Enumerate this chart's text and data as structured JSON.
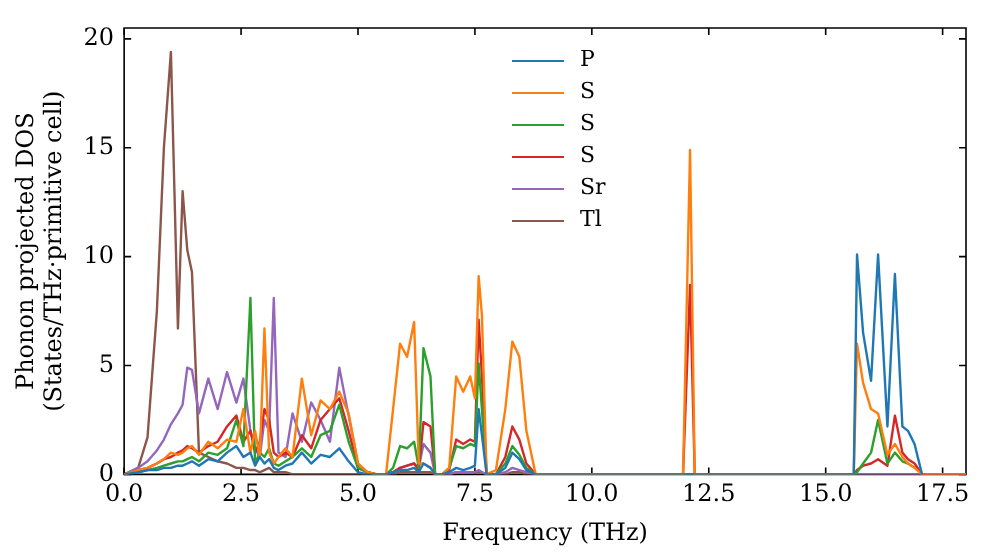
{
  "chart_data": {
    "type": "line",
    "xlabel": "Frequency (THz)",
    "ylabel": "Phonon projected DOS\n(States/THz·primitive cell)",
    "x": [
      0,
      0.3,
      0.5,
      0.7,
      0.85,
      1.0,
      1.15,
      1.25,
      1.35,
      1.45,
      1.6,
      1.8,
      2.0,
      2.2,
      2.4,
      2.55,
      2.7,
      2.8,
      2.9,
      3.0,
      3.1,
      3.2,
      3.3,
      3.45,
      3.6,
      3.8,
      4.0,
      4.2,
      4.4,
      4.6,
      4.8,
      5.0,
      5.2,
      5.4,
      5.6,
      5.75,
      5.9,
      6.05,
      6.2,
      6.3,
      6.4,
      6.55,
      6.65,
      6.8,
      6.95,
      7.1,
      7.25,
      7.4,
      7.5,
      7.58,
      7.65,
      7.75,
      7.95,
      8.15,
      8.3,
      8.45,
      8.6,
      8.8,
      9.0,
      11.95,
      12.1,
      12.2,
      12.35,
      15.6,
      15.67,
      15.8,
      15.97,
      16.12,
      16.32,
      16.48,
      16.64,
      16.76,
      16.9,
      17.06,
      17.3,
      18.0
    ],
    "series": [
      {
        "name": "P",
        "color": "#1f77b4",
        "values": [
          0,
          0.1,
          0.2,
          0.2,
          0.3,
          0.3,
          0.4,
          0.4,
          0.5,
          0.6,
          0.4,
          0.7,
          0.6,
          1.0,
          1.3,
          0.8,
          1.0,
          0.4,
          0.8,
          0.5,
          0.7,
          0.3,
          0.2,
          0.4,
          0.5,
          1.0,
          0.5,
          0.9,
          0.8,
          1.2,
          0.6,
          0.1,
          0,
          null,
          0,
          0.1,
          0.2,
          0.2,
          0.3,
          0.1,
          0.5,
          0.3,
          0,
          0,
          0.1,
          0.3,
          0.2,
          0.3,
          0.4,
          3.0,
          1.8,
          0,
          0,
          0.3,
          1.0,
          0.7,
          0.2,
          0,
          null,
          null,
          null,
          null,
          null,
          0,
          10.1,
          6.5,
          4.3,
          10.1,
          2.2,
          9.2,
          2.2,
          2.0,
          1.4,
          0,
          null,
          null
        ]
      },
      {
        "name": "S",
        "color": "#ff7f0e",
        "values": [
          0,
          0.2,
          0.3,
          0.5,
          0.7,
          1.0,
          0.9,
          1.0,
          1.2,
          1.3,
          0.9,
          1.5,
          1.2,
          1.6,
          1.5,
          3.0,
          1.0,
          2.0,
          0.8,
          6.7,
          1.0,
          0.5,
          0.8,
          1.2,
          0.8,
          4.4,
          1.8,
          3.4,
          3.0,
          3.8,
          2.8,
          0.5,
          0.1,
          0,
          0,
          3.0,
          6.0,
          5.4,
          7.0,
          0.5,
          0.5,
          0.3,
          0,
          0,
          0.3,
          4.5,
          3.8,
          4.5,
          3.5,
          9.1,
          7.3,
          0,
          0.2,
          3.0,
          6.1,
          5.4,
          2.0,
          0,
          null,
          0,
          14.9,
          0,
          null,
          0,
          6.0,
          4.2,
          3.0,
          2.8,
          0.9,
          1.4,
          0.8,
          0.5,
          0.3,
          0,
          null,
          0
        ]
      },
      {
        "name": "S",
        "color": "#2ca02c",
        "values": [
          0,
          0.1,
          0.2,
          0.3,
          0.4,
          0.5,
          0.6,
          0.6,
          0.7,
          0.8,
          0.6,
          1.0,
          0.9,
          1.2,
          2.5,
          1.3,
          8.1,
          0.5,
          1.0,
          0.8,
          1.2,
          0.5,
          0.4,
          0.6,
          0.8,
          1.2,
          0.8,
          1.8,
          2.0,
          3.2,
          1.5,
          0.3,
          0.1,
          0,
          0,
          0.3,
          1.3,
          1.2,
          1.5,
          0.3,
          5.8,
          4.5,
          0,
          0,
          0.3,
          1.3,
          1.2,
          1.4,
          1.3,
          5.1,
          3.0,
          0,
          0,
          0.5,
          1.3,
          0.9,
          0.3,
          0,
          null,
          null,
          null,
          null,
          null,
          0,
          0.1,
          0.5,
          1.0,
          2.5,
          0.5,
          1.0,
          0.6,
          0.5,
          0.3,
          null,
          null,
          null
        ]
      },
      {
        "name": "S",
        "color": "#d62728",
        "values": [
          0,
          0.2,
          0.3,
          0.5,
          0.7,
          0.8,
          1.0,
          1.1,
          1.3,
          1.2,
          1.0,
          1.3,
          1.5,
          2.2,
          2.7,
          1.5,
          2.0,
          1.0,
          1.5,
          3.0,
          2.5,
          1.0,
          0.8,
          1.0,
          0.8,
          1.8,
          1.2,
          2.5,
          3.0,
          3.5,
          2.0,
          0.3,
          0.1,
          0,
          0,
          0.1,
          0.3,
          0.4,
          0.5,
          0.2,
          2.4,
          2.2,
          0,
          0,
          0.2,
          1.6,
          1.4,
          1.6,
          1.5,
          7.1,
          4.5,
          0,
          0,
          0.8,
          2.2,
          1.6,
          0.5,
          0,
          null,
          0,
          8.7,
          0,
          null,
          0,
          0.2,
          0.4,
          0.5,
          0.7,
          0.4,
          2.7,
          1.0,
          0.7,
          0.5,
          0,
          null,
          0
        ]
      },
      {
        "name": "Sr",
        "color": "#9467bd",
        "values": [
          0,
          0.3,
          0.6,
          1.1,
          1.6,
          2.3,
          2.8,
          3.2,
          4.9,
          4.8,
          2.8,
          4.4,
          3.0,
          4.7,
          3.3,
          4.4,
          2.0,
          1.2,
          0.8,
          2.5,
          2.0,
          8.1,
          1.0,
          0.8,
          2.8,
          1.5,
          3.3,
          2.5,
          1.5,
          4.9,
          2.7,
          0.5,
          0.1,
          0,
          0,
          0.1,
          0.3,
          0.4,
          0.5,
          0.3,
          1.4,
          1.0,
          0,
          null,
          0,
          0.1,
          0.1,
          0.1,
          0.1,
          0.2,
          0.1,
          0,
          0,
          0.1,
          0.3,
          0.2,
          0.1,
          0,
          null,
          null,
          null,
          null,
          null,
          null,
          null,
          null,
          null,
          null,
          null,
          null,
          null,
          null,
          null,
          null,
          null,
          0
        ]
      },
      {
        "name": "Tl",
        "color": "#8c564b",
        "values": [
          0,
          0.3,
          1.7,
          7.5,
          15,
          19.4,
          6.7,
          13,
          10.3,
          9.3,
          1.0,
          0.8,
          0.6,
          0.5,
          0.3,
          0.3,
          0.2,
          0.2,
          0.1,
          0.2,
          0.3,
          0.1,
          0.1,
          0.1,
          0,
          0,
          0,
          0,
          0,
          0,
          0,
          0,
          0,
          0,
          0,
          0,
          0.1,
          0.1,
          0.1,
          0.1,
          0.1,
          0.1,
          0,
          0,
          0,
          0.1,
          0.1,
          0.1,
          0.1,
          0.1,
          0.1,
          0,
          0,
          0,
          0.1,
          0.1,
          0,
          0,
          0,
          0,
          0,
          0,
          0,
          0,
          0,
          0,
          0,
          0,
          0,
          0,
          0,
          0,
          0,
          0,
          0,
          0
        ]
      }
    ],
    "xlim": [
      0,
      18
    ],
    "ylim": [
      0,
      20.5
    ],
    "xticks": [
      {
        "value": 0,
        "label": "0.0"
      },
      {
        "value": 2.5,
        "label": "2.5"
      },
      {
        "value": 5,
        "label": "5.0"
      },
      {
        "value": 7.5,
        "label": "7.5"
      },
      {
        "value": 10,
        "label": "10.0"
      },
      {
        "value": 12.5,
        "label": "12.5"
      },
      {
        "value": 15,
        "label": "15.0"
      },
      {
        "value": 17.5,
        "label": "17.5"
      }
    ],
    "yticks": [
      0,
      5,
      10,
      15,
      20
    ],
    "grid": false,
    "legend": "top",
    "marker": "none",
    "line_style": "solid"
  }
}
